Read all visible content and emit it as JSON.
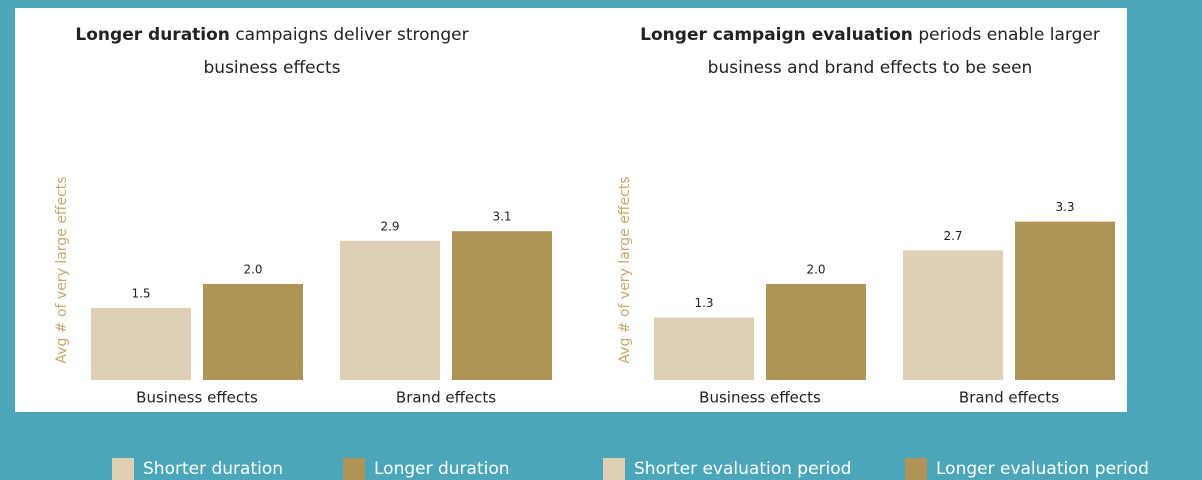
{
  "chart_data": [
    {
      "type": "bar",
      "title_bold": "Longer duration",
      "title_lines": [
        "campaigns deliver stronger",
        "business effects"
      ],
      "y_label": "Avg # of very large effects",
      "categories": [
        "Business effects",
        "Brand effects"
      ],
      "series": [
        {
          "name": "Shorter duration",
          "color": "#ddd0b5",
          "values": [
            1.5,
            2.9
          ],
          "value_labels": [
            "1.5",
            "2.9"
          ]
        },
        {
          "name": "Longer duration",
          "color": "#b09457",
          "values": [
            2,
            3.1
          ],
          "value_labels": [
            "2.0",
            "3.1"
          ]
        }
      ]
    },
    {
      "type": "bar",
      "title_bold": "Longer campaign evaluation",
      "title_lines": [
        "periods enable larger",
        "business and brand effects to be seen"
      ],
      "y_label": "Avg # of very large effects",
      "categories": [
        "Business effects",
        "Brand effects"
      ],
      "series": [
        {
          "name": "Shorter evaluation period",
          "color": "#ddd0b5",
          "values": [
            1.3,
            2.7
          ],
          "value_labels": [
            "1.3",
            "2.7"
          ]
        },
        {
          "name": "Longer evaluation period",
          "color": "#b09457",
          "values": [
            2,
            3.3
          ],
          "value_labels": [
            "2.0",
            "3.3"
          ]
        }
      ]
    }
  ]
}
